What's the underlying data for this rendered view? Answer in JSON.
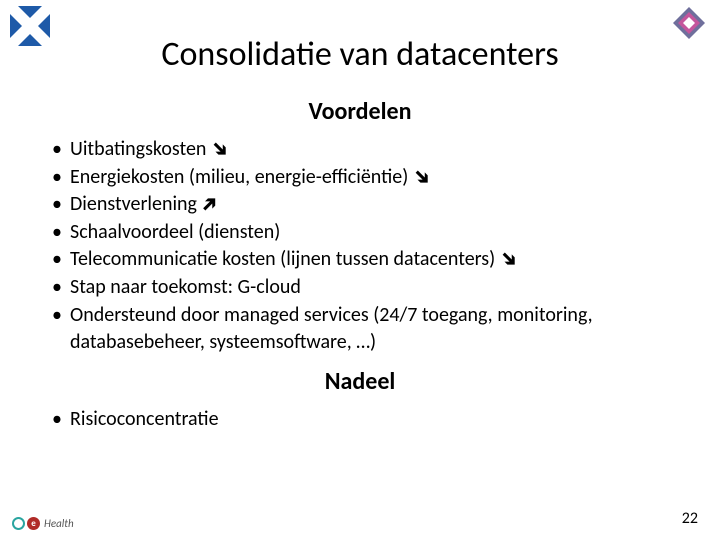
{
  "logos": {
    "left": {
      "bg_color": "#1e5aa8",
      "cross_color": "#ffffff"
    },
    "right": {
      "outer_color": "#6f6f9c",
      "mid_color": "#c4569c",
      "inner_color": "#ffffff"
    }
  },
  "title": "Consolidatie van datacenters",
  "sections": {
    "advantages_title": "Voordelen",
    "advantages": [
      {
        "text": "Uitbatingskosten",
        "arrow": "down"
      },
      {
        "text": "Energiekosten (milieu, energie-efficiëntie)",
        "arrow": "down"
      },
      {
        "text": "Dienstverlening",
        "arrow": "up"
      },
      {
        "text": "Schaalvoordeel (diensten)",
        "arrow": null
      },
      {
        "text": "Telecommunicatie kosten (lijnen tussen datacenters)",
        "arrow": "down"
      },
      {
        "text": "Stap naar toekomst: G-cloud",
        "arrow": null
      },
      {
        "text": "Ondersteund door managed services (24/7 toegang, monitoring, databasebeheer, systeemsoftware, …)",
        "arrow": null
      }
    ],
    "disadvantage_title": "Nadeel",
    "disadvantages": [
      {
        "text": "Risicoconcentratie",
        "arrow": null
      }
    ]
  },
  "footer": {
    "logo_letter": "e",
    "logo_label": "Health",
    "ring_color": "#2aa5a0",
    "solid_color": "#b02b27"
  },
  "page_number": "22",
  "arrow_glyph": "➔"
}
